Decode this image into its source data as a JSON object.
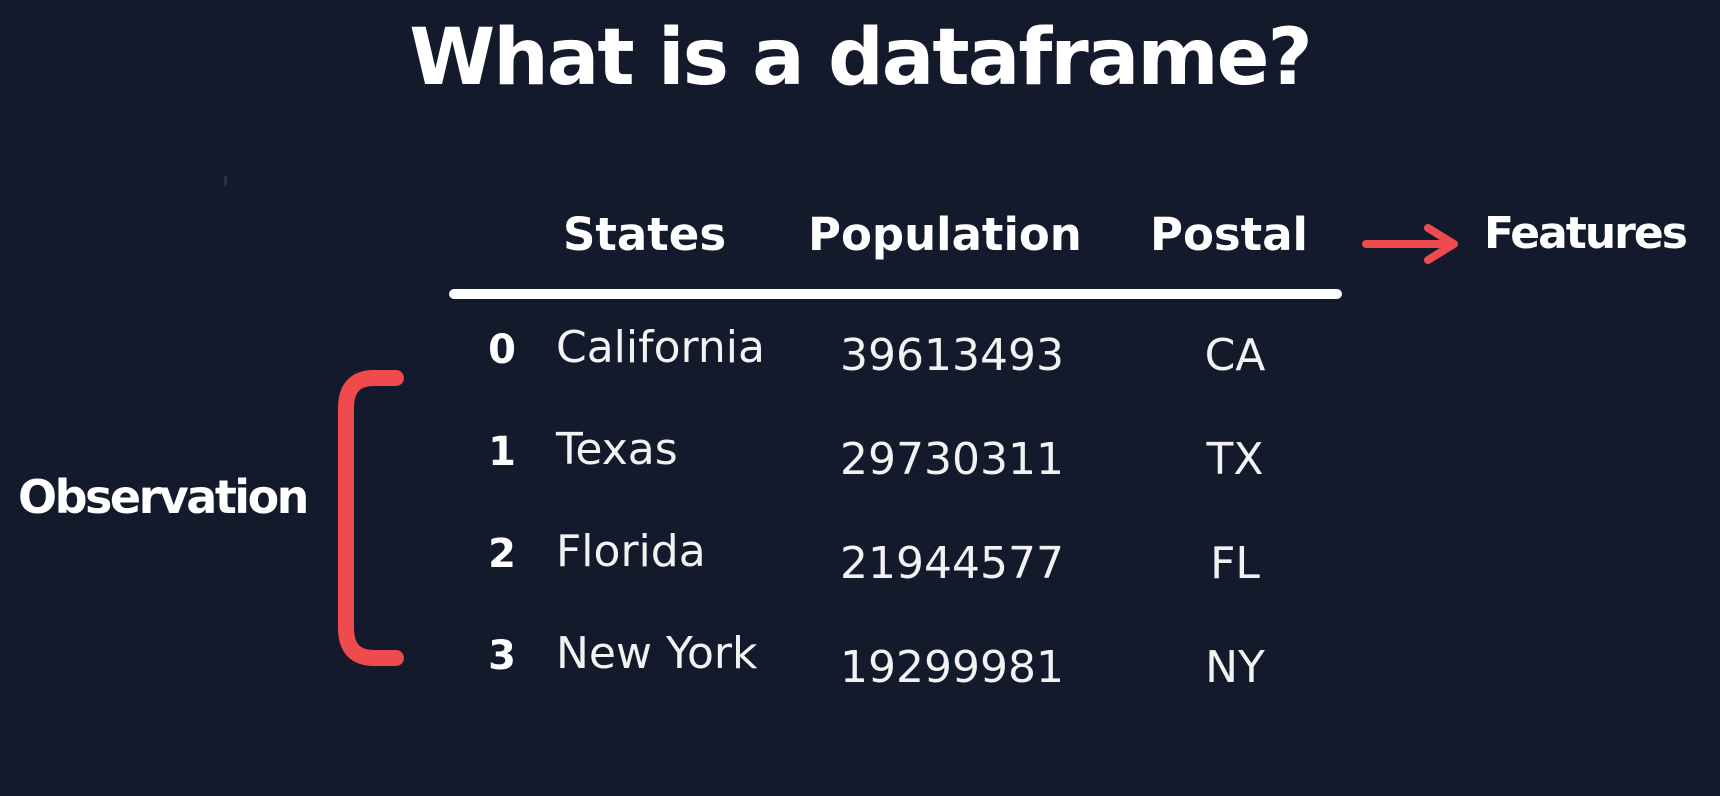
{
  "title": "What is a dataframe?",
  "table": {
    "columns": [
      "States",
      "Population",
      "Postal"
    ],
    "rows": [
      {
        "index": "0",
        "state": "California",
        "population": "39613493",
        "postal": "CA"
      },
      {
        "index": "1",
        "state": "Texas",
        "population": "29730311",
        "postal": "TX"
      },
      {
        "index": "2",
        "state": "Florida",
        "population": "21944577",
        "postal": "FL"
      },
      {
        "index": "3",
        "state": "New York",
        "population": "19299981",
        "postal": "NY"
      }
    ]
  },
  "annotations": {
    "features_label": "Features",
    "observation_label": "Observation"
  },
  "colors": {
    "background": "#121a2b",
    "text": "#ffffff",
    "accent": "#ef4b4f"
  },
  "icons": {
    "features_arrow": "right-arrow-icon",
    "observation_bracket": "left-bracket-icon"
  }
}
